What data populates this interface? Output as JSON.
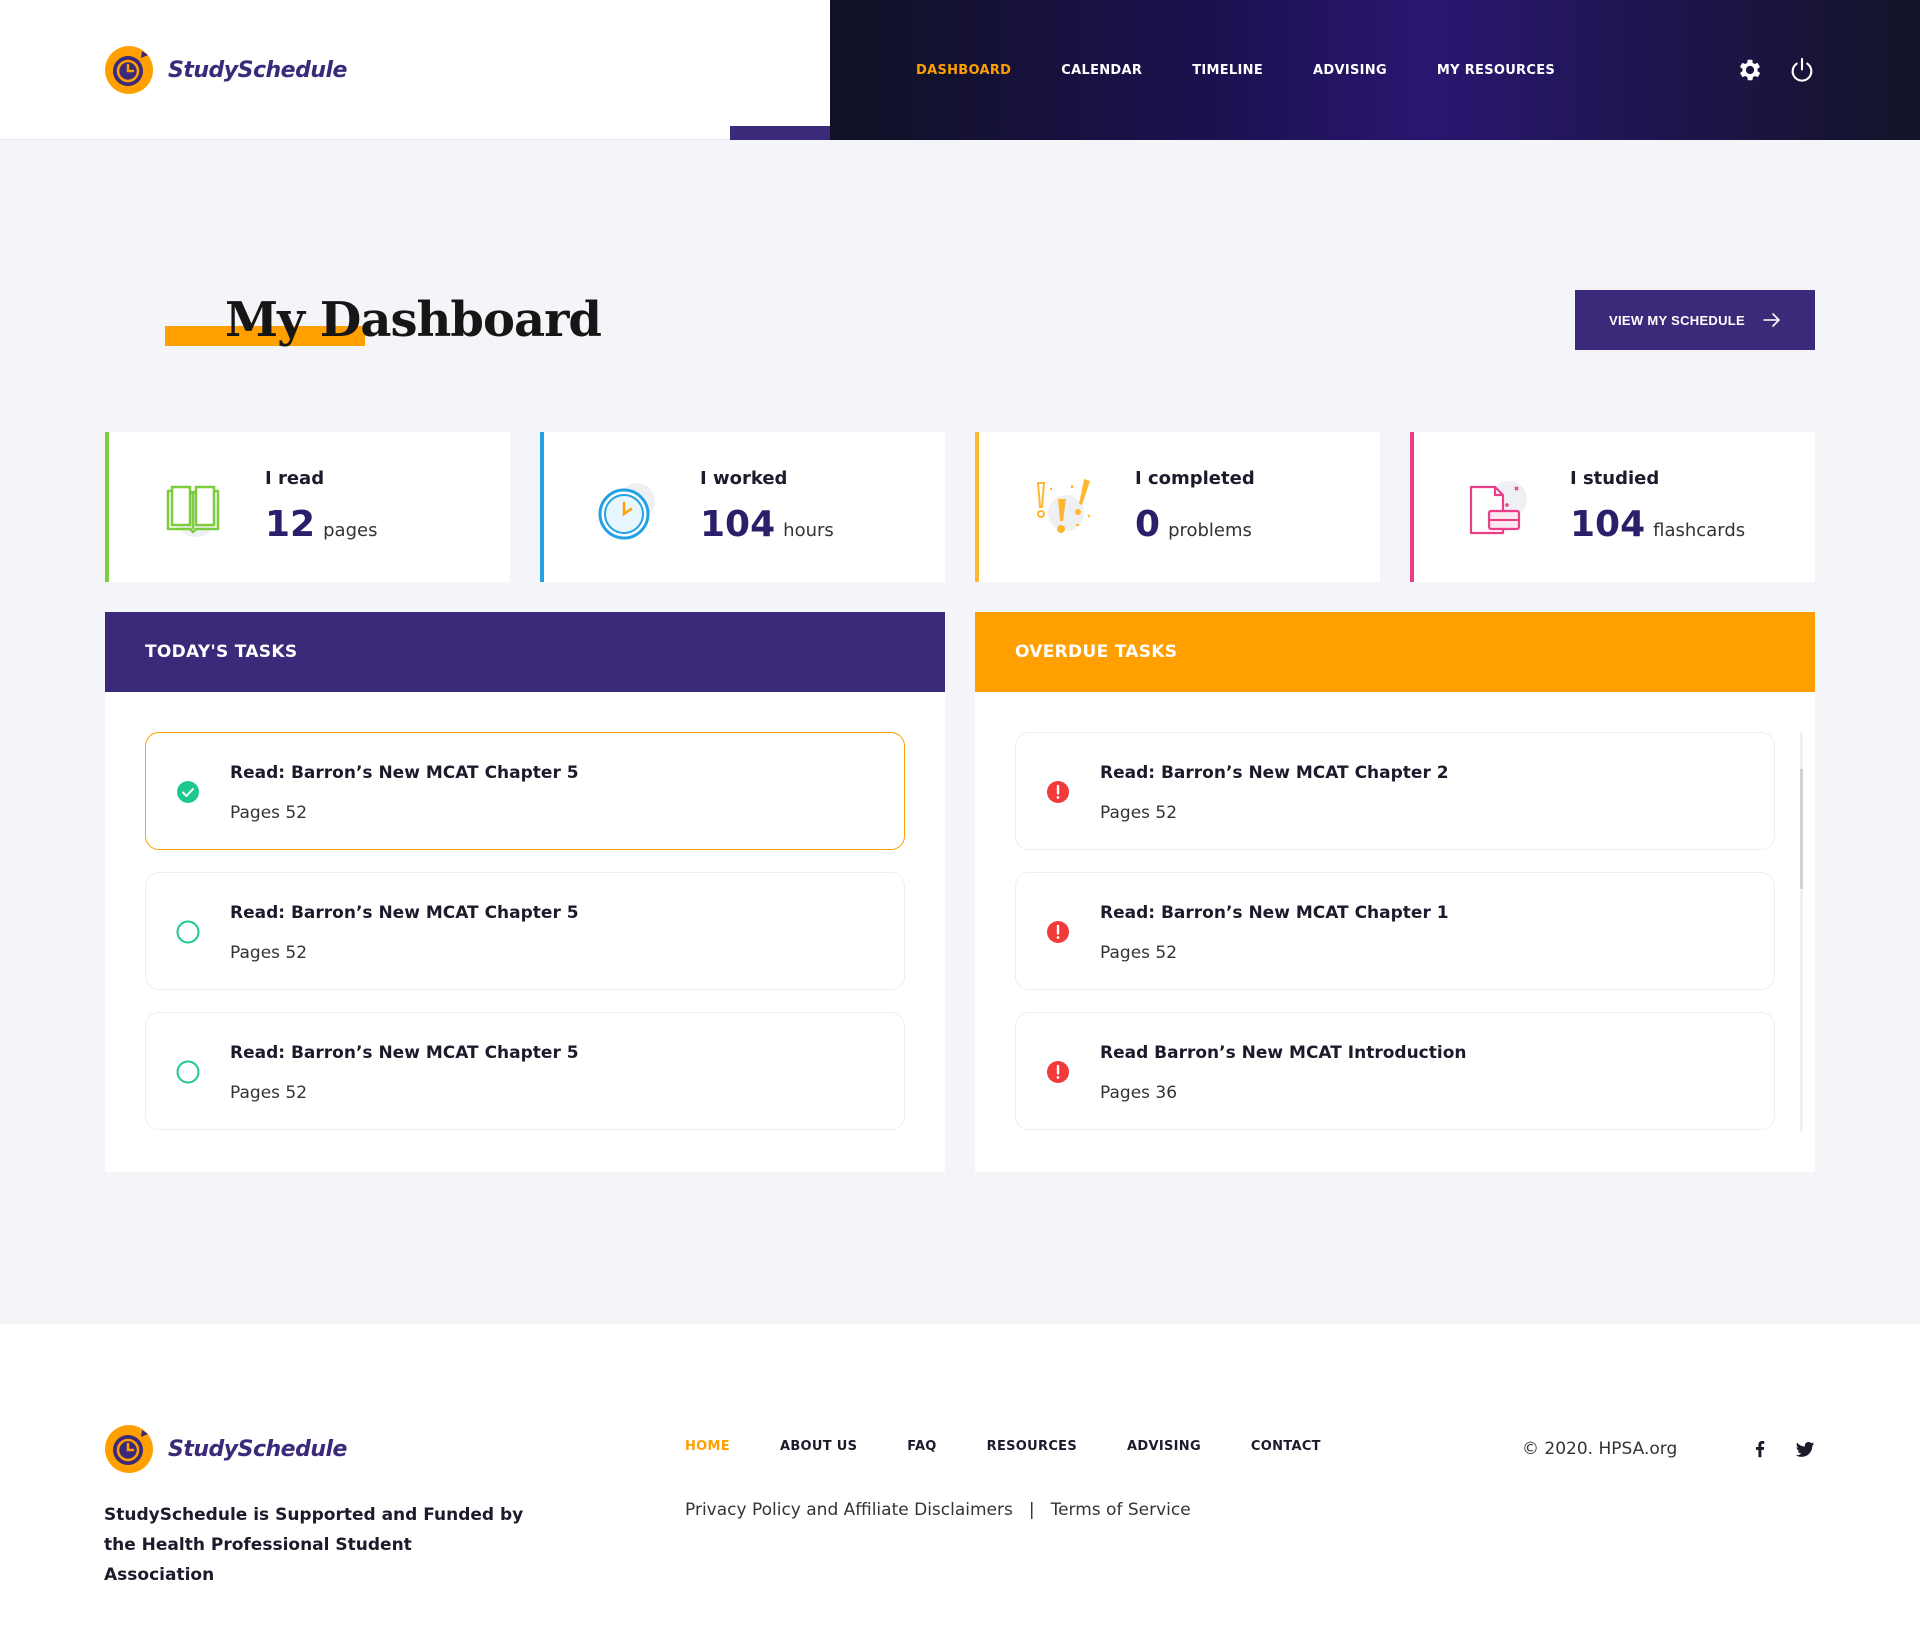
{
  "brand": {
    "name": "StudySchedule"
  },
  "nav": {
    "items": [
      "DASHBOARD",
      "CALENDAR",
      "TIMELINE",
      "ADVISING",
      "MY RESOURCES"
    ],
    "active_index": 0
  },
  "colors": {
    "primary": "#3b2a7a",
    "accent": "#ffa000",
    "success": "#1ec88c",
    "danger": "#f23a3a"
  },
  "page": {
    "title": "My Dashboard",
    "schedule_button": "VIEW MY SCHEDULE"
  },
  "stats": [
    {
      "label": "I read",
      "value": "12",
      "unit": "pages",
      "icon": "book-icon",
      "color": "#7ccc3c"
    },
    {
      "label": "I worked",
      "value": "104",
      "unit": "hours",
      "icon": "clock-icon",
      "color": "#22a2e4"
    },
    {
      "label": "I completed",
      "value": "0",
      "unit": "problems",
      "icon": "exclamation-icon",
      "color": "#ffb733"
    },
    {
      "label": "I studied",
      "value": "104",
      "unit": "flashcards",
      "icon": "flashcards-icon",
      "color": "#ea3f88"
    }
  ],
  "today": {
    "heading": "TODAY'S TASKS",
    "tasks": [
      {
        "title": "Read: Barron’s New MCAT Chapter 5",
        "detail": "Pages 52",
        "done": true
      },
      {
        "title": "Read: Barron’s New MCAT Chapter 5",
        "detail": "Pages 52",
        "done": false
      },
      {
        "title": "Read: Barron’s New MCAT Chapter 5",
        "detail": "Pages 52",
        "done": false
      }
    ]
  },
  "overdue": {
    "heading": "OVERDUE TASKS",
    "tasks": [
      {
        "title": "Read: Barron’s New MCAT Chapter 2",
        "detail": "Pages 52"
      },
      {
        "title": "Read: Barron’s New MCAT Chapter 1",
        "detail": "Pages 52"
      },
      {
        "title": "Read Barron’s New MCAT Introduction",
        "detail": "Pages 36"
      }
    ]
  },
  "footer": {
    "tagline": "StudySchedule is Supported and Funded by the Health Professional Student Association",
    "nav": [
      "HOME",
      "ABOUT US",
      "FAQ",
      "RESOURCES",
      "ADVISING",
      "CONTACT"
    ],
    "privacy": "Privacy Policy and Affiliate Disclaimers",
    "separator": "|",
    "terms": "Terms of Service",
    "copyright": "© 2020.  HPSA.org"
  }
}
